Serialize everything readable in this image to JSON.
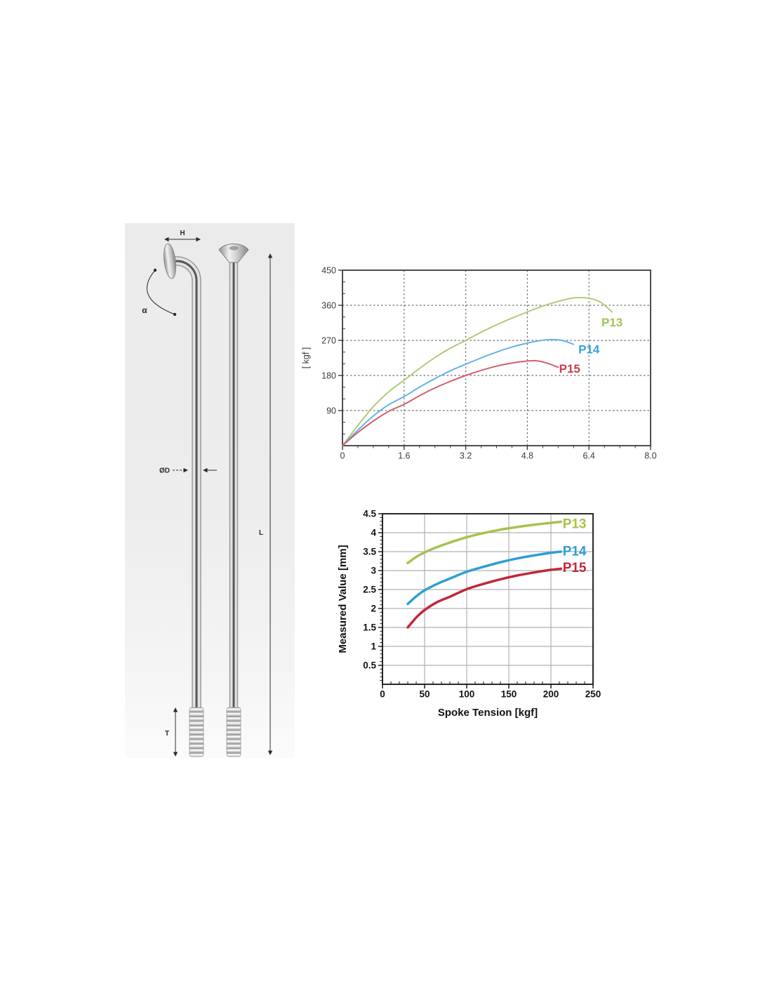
{
  "page": {
    "background": "#ffffff"
  },
  "spoke_diagram": {
    "labels": {
      "head_width": "H",
      "bend_angle": "α",
      "diameter": "ØD",
      "length": "L",
      "thread_length": "T"
    }
  },
  "chart_data": [
    {
      "type": "line",
      "title": "",
      "xlabel": "",
      "ylabel": "[ kgf ]",
      "xlim": [
        0,
        8
      ],
      "ylim": [
        0,
        450
      ],
      "xtick_vals": [
        0,
        1.6,
        3.2,
        4.8,
        6.4,
        8.0
      ],
      "xtick_labels": [
        "0",
        "1.6",
        "3.2",
        "4.8",
        "6.4",
        "8.0"
      ],
      "ytick_vals": [
        90,
        180,
        270,
        360,
        450
      ],
      "ytick_labels": [
        "90",
        "180",
        "270",
        "360",
        "450"
      ],
      "x_minor": 0.4,
      "y_minor": 30,
      "x_minor_side": "out",
      "y_minor_side": "in",
      "grid": "dashed",
      "grid_color": "#6f6f6f",
      "frame_color": "#3a3a3a",
      "tick_bold": false,
      "ylabel_offset": 48,
      "label_size": 17,
      "series": [
        {
          "name": "P13",
          "color": "#aecb7c",
          "label_color": "#9fc457",
          "width": 2,
          "label_at": [
            7.0,
            317
          ],
          "x": [
            0,
            0.4,
            0.8,
            1.2,
            1.6,
            2.0,
            2.4,
            2.8,
            3.2,
            3.6,
            4.0,
            4.4,
            4.8,
            5.2,
            5.6,
            6.0,
            6.4,
            6.7,
            7.0
          ],
          "y": [
            0,
            52,
            100,
            138,
            168,
            198,
            226,
            250,
            270,
            291,
            310,
            327,
            343,
            358,
            370,
            379,
            378,
            368,
            343
          ]
        },
        {
          "name": "P14",
          "color": "#62b4e4",
          "label_color": "#35a3dc",
          "width": 2,
          "label_at": [
            6.4,
            247
          ],
          "x": [
            0,
            0.4,
            0.8,
            1.2,
            1.6,
            2.0,
            2.4,
            2.8,
            3.2,
            3.6,
            4.0,
            4.4,
            4.8,
            5.1,
            5.4,
            5.7,
            6.0
          ],
          "y": [
            0,
            40,
            76,
            105,
            126,
            150,
            172,
            192,
            209,
            225,
            240,
            253,
            263,
            269,
            272,
            270,
            260
          ]
        },
        {
          "name": "P15",
          "color": "#d2606c",
          "label_color": "#c73c4e",
          "width": 2,
          "label_at": [
            5.9,
            198
          ],
          "x": [
            0,
            0.4,
            0.8,
            1.2,
            1.6,
            2.0,
            2.4,
            2.8,
            3.2,
            3.6,
            4.0,
            4.4,
            4.7,
            5.0,
            5.3,
            5.6
          ],
          "y": [
            0,
            34,
            63,
            88,
            106,
            128,
            148,
            165,
            180,
            193,
            204,
            212,
            216,
            218,
            212,
            201
          ]
        }
      ]
    },
    {
      "type": "line",
      "title": "",
      "xlabel": "Spoke Tension [kgf]",
      "ylabel": "Measured Value [mm]",
      "xlim": [
        0,
        250
      ],
      "ylim": [
        0,
        4.5
      ],
      "xtick_vals": [
        0,
        50,
        100,
        150,
        200,
        250
      ],
      "xtick_labels": [
        "0",
        "50",
        "100",
        "150",
        "200",
        "250"
      ],
      "ytick_vals": [
        0.5,
        1,
        1.5,
        2,
        2.5,
        3,
        3.5,
        4,
        4.5
      ],
      "ytick_labels": [
        "0.5",
        "1",
        "1.5",
        "2",
        "2.5",
        "3",
        "3.5",
        "4",
        "4.5"
      ],
      "x_minor": 10,
      "y_minor": 0.1,
      "x_minor_side": "in",
      "y_minor_side": "out",
      "grid": "solid",
      "grid_color": "#b0b0b0",
      "frame_color": "#111111",
      "tick_bold": true,
      "ylabel_offset": 52,
      "label_size": 19,
      "series": [
        {
          "name": "P13",
          "color": "#a6c24d",
          "label_color": "#a6c24d",
          "width": 3.5,
          "label_at": [
            228,
            4.24
          ],
          "x": [
            30,
            40,
            50,
            65,
            80,
            100,
            120,
            140,
            160,
            180,
            200,
            212
          ],
          "y": [
            3.2,
            3.36,
            3.48,
            3.62,
            3.74,
            3.88,
            3.99,
            4.08,
            4.15,
            4.21,
            4.26,
            4.29
          ]
        },
        {
          "name": "P14",
          "color": "#2f9ed6",
          "label_color": "#2f9ed6",
          "width": 3.5,
          "label_at": [
            228,
            3.52
          ],
          "x": [
            30,
            40,
            50,
            65,
            80,
            100,
            120,
            140,
            160,
            180,
            200,
            212
          ],
          "y": [
            2.12,
            2.32,
            2.48,
            2.65,
            2.79,
            2.97,
            3.1,
            3.22,
            3.32,
            3.4,
            3.47,
            3.5
          ]
        },
        {
          "name": "P15",
          "color": "#c22739",
          "label_color": "#c22739",
          "width": 3.5,
          "label_at": [
            228,
            3.09
          ],
          "x": [
            30,
            40,
            50,
            65,
            80,
            100,
            120,
            140,
            160,
            180,
            200,
            212
          ],
          "y": [
            1.5,
            1.76,
            1.96,
            2.17,
            2.31,
            2.51,
            2.65,
            2.77,
            2.87,
            2.95,
            3.02,
            3.05
          ]
        }
      ]
    }
  ]
}
